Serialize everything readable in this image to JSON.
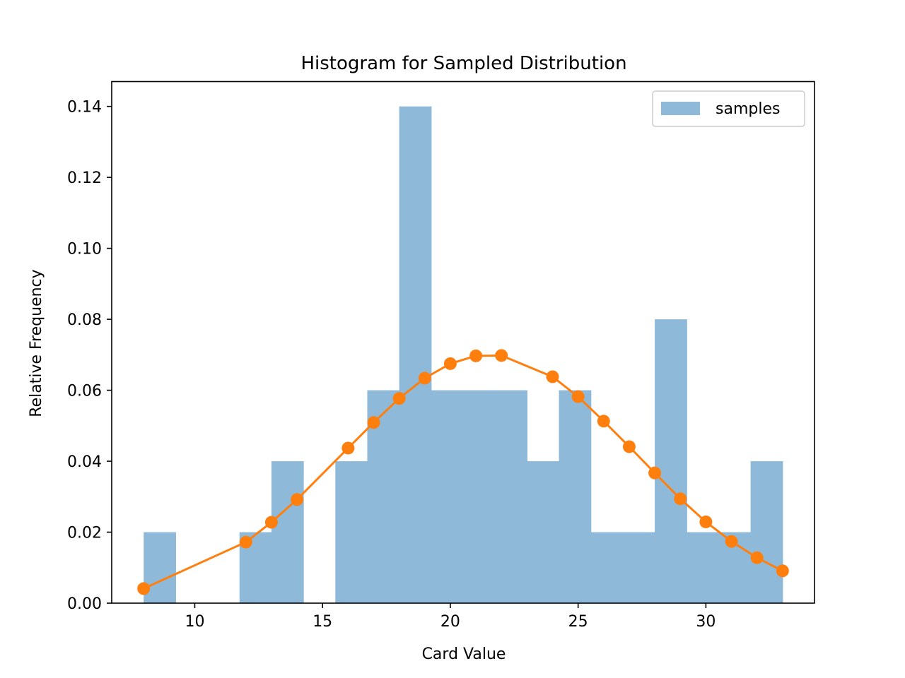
{
  "chart_data": {
    "type": "bar",
    "title": "Histogram for Sampled Distribution",
    "xlabel": "Card Value",
    "ylabel": "Relative Frequency",
    "xlim": [
      6.75,
      34.25
    ],
    "ylim": [
      0,
      0.147
    ],
    "xticks": [
      10,
      15,
      20,
      25,
      30
    ],
    "yticks": [
      0.0,
      0.02,
      0.04,
      0.06,
      0.08,
      0.1,
      0.12,
      0.14
    ],
    "ytick_labels": [
      "0.00",
      "0.02",
      "0.04",
      "0.06",
      "0.08",
      "0.10",
      "0.12",
      "0.14"
    ],
    "histogram": {
      "name": "samples",
      "color": "#8fb9d8",
      "bin_edges": [
        8,
        9.25,
        10.5,
        11.75,
        13,
        14.25,
        15.5,
        16.75,
        18,
        19.25,
        20.5,
        21.75,
        23,
        24.25,
        25.5,
        26.75,
        28,
        29.25,
        30.5,
        31.75,
        33
      ],
      "values": [
        0.02,
        0,
        0,
        0.02,
        0.04,
        0,
        0.04,
        0.06,
        0.14,
        0.06,
        0.06,
        0.06,
        0.04,
        0.06,
        0.02,
        0.02,
        0.08,
        0.02,
        0.02,
        0.04
      ]
    },
    "line_series": {
      "color": "#ff7f0e",
      "x": [
        8,
        12,
        13,
        14,
        16,
        17,
        18,
        19,
        20,
        21,
        22,
        24,
        25,
        26,
        27,
        28,
        29,
        30,
        31,
        32,
        33
      ],
      "y": [
        0.0041,
        0.0172,
        0.0228,
        0.0292,
        0.0437,
        0.0509,
        0.0577,
        0.0634,
        0.0675,
        0.0697,
        0.0698,
        0.0638,
        0.0582,
        0.0513,
        0.0441,
        0.0367,
        0.0294,
        0.0229,
        0.0174,
        0.0128,
        0.0091
      ]
    },
    "legend": {
      "entries": [
        "samples"
      ],
      "placement": "top-right"
    },
    "grid": false
  }
}
